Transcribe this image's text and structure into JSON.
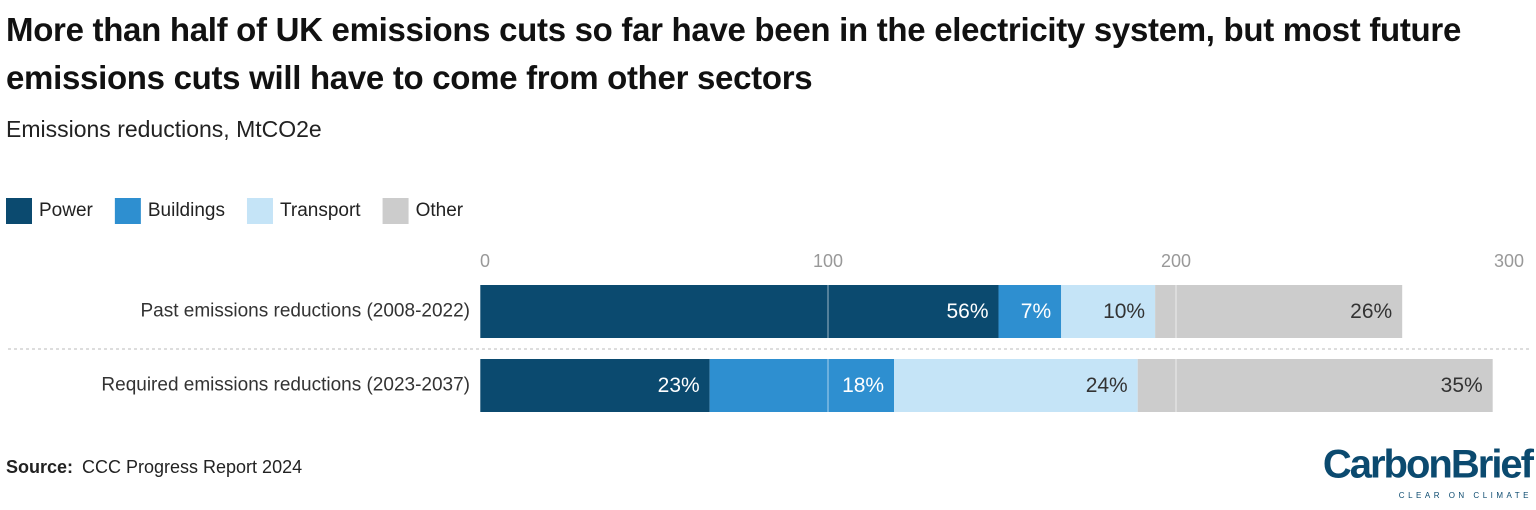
{
  "chart_data": {
    "type": "stacked-bar-horizontal",
    "title": "More than half of UK emissions cuts so far have been in the electricity system, but most future emissions cuts will have to come from other sectors",
    "subtitle": "Emissions reductions, MtCO2e",
    "categories": [
      "Past emissions reductions (2008-2022)",
      "Required emissions reductions (2023-2037)"
    ],
    "series": [
      {
        "name": "Power",
        "color": "#0b4a6f",
        "label_color": "#ffffff",
        "values": [
          149,
          66
        ],
        "share_labels": [
          "56%",
          "23%"
        ]
      },
      {
        "name": "Buildings",
        "color": "#2e8fd0",
        "label_color": "#ffffff",
        "values": [
          18,
          53
        ],
        "share_labels": [
          "7%",
          "18%"
        ]
      },
      {
        "name": "Transport",
        "color": "#c5e4f7",
        "label_color": "#333333",
        "values": [
          27,
          70
        ],
        "share_labels": [
          "10%",
          "24%"
        ]
      },
      {
        "name": "Other",
        "color": "#cccccc",
        "label_color": "#333333",
        "values": [
          71,
          102
        ],
        "share_labels": [
          "26%",
          "35%"
        ]
      }
    ],
    "xlim": [
      0,
      300
    ],
    "xticks": [
      0,
      100,
      200,
      300
    ],
    "grid": true,
    "legend": "top-left",
    "source_label": "Source:",
    "source": "CCC Progress Report 2024",
    "logo": "CarbonBrief",
    "logo_tagline": "CLEAR ON CLIMATE"
  }
}
